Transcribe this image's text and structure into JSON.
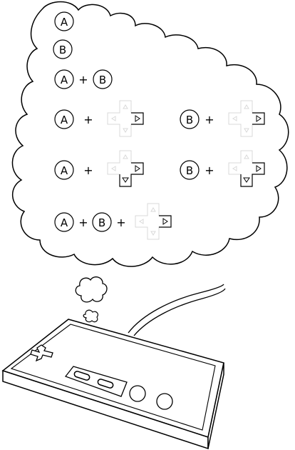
{
  "colors": {
    "ink": "#000000",
    "paper": "#ffffff",
    "ghost": "#d9d9d9"
  },
  "buttons": {
    "a_label": "A",
    "b_label": "B"
  },
  "operator": "+",
  "combos": [
    {
      "id": "a",
      "parts": [
        "A"
      ]
    },
    {
      "id": "b",
      "parts": [
        "B"
      ]
    },
    {
      "id": "a-plus-b",
      "parts": [
        "A",
        "+",
        "B"
      ]
    },
    {
      "id": "a-plus-right",
      "parts": [
        "A",
        "+",
        "dpad-right"
      ]
    },
    {
      "id": "b-plus-right",
      "parts": [
        "B",
        "+",
        "dpad-right"
      ]
    },
    {
      "id": "a-plus-down-right",
      "parts": [
        "A",
        "+",
        "dpad-down-right"
      ]
    },
    {
      "id": "b-plus-down-right",
      "parts": [
        "B",
        "+",
        "dpad-down-right"
      ]
    },
    {
      "id": "a-plus-b-plus-right",
      "parts": [
        "A",
        "+",
        "B",
        "+",
        "dpad-right"
      ]
    }
  ],
  "icons": [
    "thought-cloud",
    "game-controller",
    "dpad-icon",
    "select-button",
    "start-button",
    "round-button"
  ]
}
